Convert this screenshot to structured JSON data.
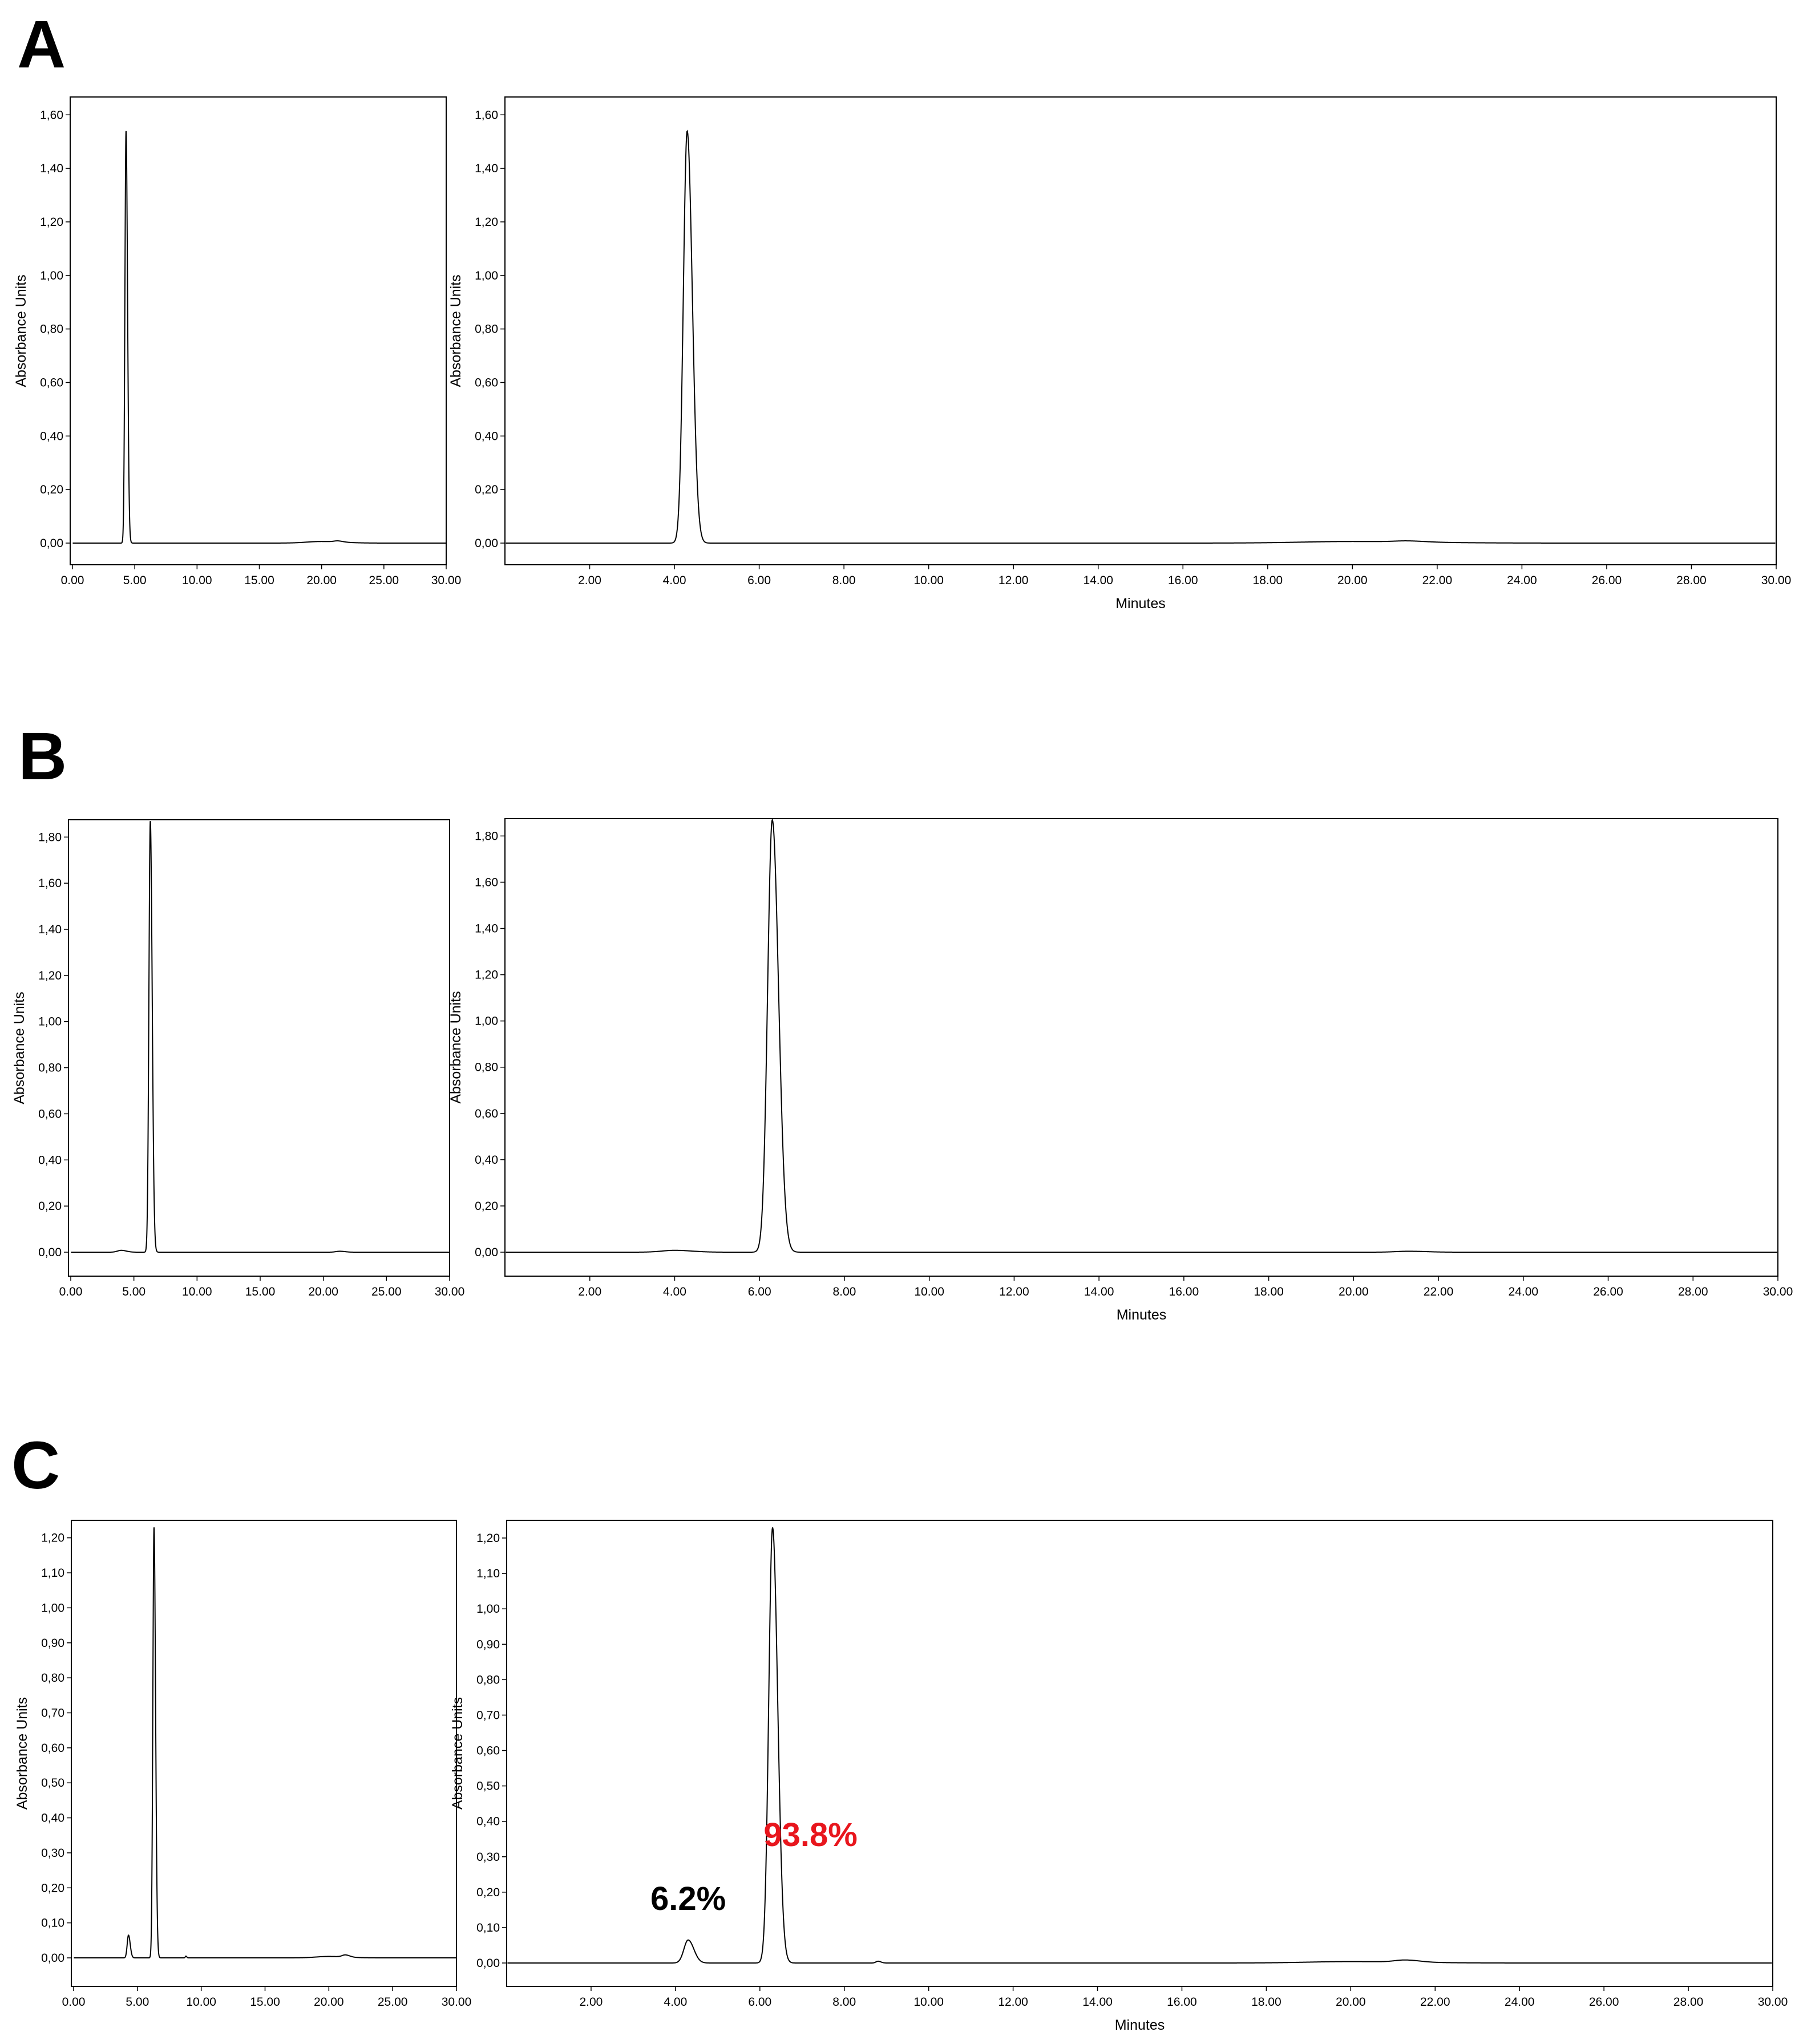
{
  "colors": {
    "trace": "#000000",
    "frame": "#000000",
    "annotation_black": "#000000",
    "annotation_red": "#e8161d"
  },
  "panels": [
    {
      "letter": "A",
      "overview": {
        "ylabel": "Absorbance Units",
        "xticks": [
          "0.00",
          "5.00",
          "10.00",
          "15.00",
          "20.00",
          "25.00",
          "30.00"
        ],
        "yticks": [
          "0,00",
          "0,20",
          "0,40",
          "0,60",
          "0,80",
          "1,00",
          "1,20",
          "1,40",
          "1,60"
        ]
      },
      "detail": {
        "ylabel": "Absorbance Units",
        "xlabel": "Minutes",
        "xticks": [
          "2.00",
          "4.00",
          "6.00",
          "8.00",
          "10.00",
          "12.00",
          "14.00",
          "16.00",
          "18.00",
          "20.00",
          "22.00",
          "24.00",
          "26.00",
          "28.00",
          "30.00"
        ],
        "yticks": [
          "0,00",
          "0,20",
          "0,40",
          "0,60",
          "0,80",
          "1,00",
          "1,20",
          "1,40",
          "1,60"
        ]
      },
      "annotations": []
    },
    {
      "letter": "B",
      "overview": {
        "ylabel": "Absorbance Units",
        "xticks": [
          "0.00",
          "5.00",
          "10.00",
          "15.00",
          "20.00",
          "25.00",
          "30.00"
        ],
        "yticks": [
          "0,00",
          "0,20",
          "0,40",
          "0,60",
          "0,80",
          "1,00",
          "1,20",
          "1,40",
          "1,60",
          "1,80"
        ]
      },
      "detail": {
        "ylabel": "Absorbance Units",
        "xlabel": "Minutes",
        "xticks": [
          "2.00",
          "4.00",
          "6.00",
          "8.00",
          "10.00",
          "12.00",
          "14.00",
          "16.00",
          "18.00",
          "20.00",
          "22.00",
          "24.00",
          "26.00",
          "28.00",
          "30.00"
        ],
        "yticks": [
          "0,00",
          "0,20",
          "0,40",
          "0,60",
          "0,80",
          "1,00",
          "1,20",
          "1,40",
          "1,60",
          "1,80"
        ]
      },
      "annotations": []
    },
    {
      "letter": "C",
      "overview": {
        "ylabel": "Absorbance Units",
        "xticks": [
          "0.00",
          "5.00",
          "10.00",
          "15.00",
          "20.00",
          "25.00",
          "30.00"
        ],
        "yticks": [
          "0,00",
          "0,10",
          "0,20",
          "0,30",
          "0,40",
          "0,50",
          "0,60",
          "0,70",
          "0,80",
          "0,90",
          "1,00",
          "1,10",
          "1,20"
        ]
      },
      "detail": {
        "ylabel": "Absorbance Units",
        "xlabel": "Minutes",
        "xticks": [
          "2.00",
          "4.00",
          "6.00",
          "8.00",
          "10.00",
          "12.00",
          "14.00",
          "16.00",
          "18.00",
          "20.00",
          "22.00",
          "24.00",
          "26.00",
          "28.00",
          "30.00"
        ],
        "yticks": [
          "0,00",
          "0,10",
          "0,20",
          "0,30",
          "0,40",
          "0,50",
          "0,60",
          "0,70",
          "0,80",
          "0,90",
          "1,00",
          "1,10",
          "1,20"
        ]
      },
      "annotations": [
        {
          "text": "6.2%",
          "x": 4.3,
          "y": 0.15,
          "color": "#000000"
        },
        {
          "text": "93.8%",
          "x": 7.2,
          "y": 0.33,
          "color": "#e8161d"
        }
      ]
    }
  ],
  "chart_data": [
    {
      "type": "line",
      "panel": "A",
      "xlabel": "Minutes",
      "ylabel": "Absorbance Units",
      "xlim": [
        0,
        30
      ],
      "ylim": [
        0,
        1.6
      ],
      "peaks": [
        {
          "rt": 4.3,
          "height": 1.54,
          "width": 0.09
        },
        {
          "rt": 20.0,
          "height": 0.006,
          "width": 1.2
        },
        {
          "rt": 21.3,
          "height": 0.004,
          "width": 0.3
        }
      ]
    },
    {
      "type": "line",
      "panel": "B",
      "xlabel": "Minutes",
      "ylabel": "Absorbance Units",
      "xlim": [
        0,
        30
      ],
      "ylim": [
        0,
        1.8
      ],
      "peaks": [
        {
          "rt": 6.3,
          "height": 1.87,
          "width": 0.11
        },
        {
          "rt": 4.0,
          "height": 0.008,
          "width": 0.3
        },
        {
          "rt": 21.3,
          "height": 0.004,
          "width": 0.3
        }
      ]
    },
    {
      "type": "line",
      "panel": "C",
      "xlabel": "Minutes",
      "ylabel": "Absorbance Units",
      "xlim": [
        0,
        30
      ],
      "ylim": [
        0,
        1.2
      ],
      "peaks": [
        {
          "rt": 6.3,
          "height": 1.23,
          "width": 0.09,
          "area_percent": "93.8%"
        },
        {
          "rt": 4.3,
          "height": 0.065,
          "width": 0.1,
          "area_percent": "6.2%"
        },
        {
          "rt": 8.8,
          "height": 0.005,
          "width": 0.05
        },
        {
          "rt": 20.0,
          "height": 0.004,
          "width": 1.0
        },
        {
          "rt": 21.3,
          "height": 0.006,
          "width": 0.25
        }
      ]
    }
  ]
}
